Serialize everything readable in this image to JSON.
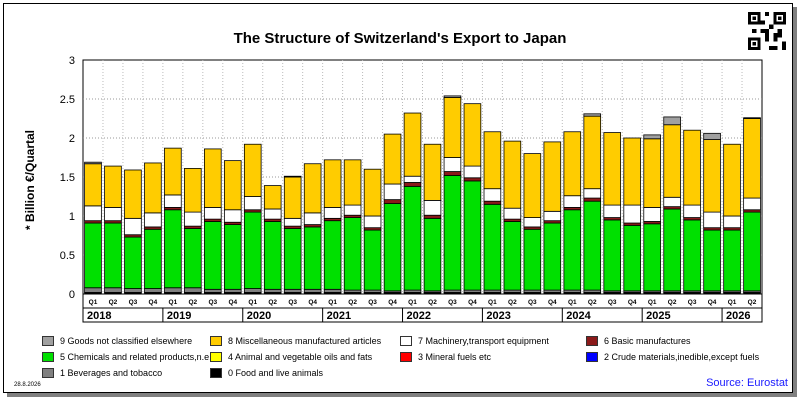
{
  "chart_data": {
    "type": "bar",
    "stacked": true,
    "title": "The Structure of Switzerland's Export to Japan",
    "ylabel": "* Billion €/Quartal",
    "ylim": [
      0,
      3
    ],
    "y_ticks": [
      "0",
      "0.5",
      "1",
      "1.5",
      "2",
      "2.5",
      "3"
    ],
    "grid": true,
    "quarter_labels": [
      "Q1",
      "Q2",
      "Q3",
      "Q4",
      "Q1",
      "Q2",
      "Q3",
      "Q4",
      "Q1",
      "Q2",
      "Q3",
      "Q4",
      "Q1",
      "Q2",
      "Q3",
      "Q4",
      "Q1",
      "Q2",
      "Q3",
      "Q4",
      "Q1",
      "Q2",
      "Q3",
      "Q4",
      "Q1",
      "Q2",
      "Q3",
      "Q4",
      "Q1",
      "Q2",
      "Q3",
      "Q4",
      "Q1",
      "Q2"
    ],
    "years": [
      "2018",
      "2019",
      "2020",
      "2021",
      "2022",
      "2023",
      "2024",
      "2025",
      "2026"
    ],
    "series": [
      {
        "name": "0 Food and live animals",
        "color": "#000000",
        "values": [
          0.02,
          0.02,
          0.02,
          0.02,
          0.02,
          0.02,
          0.02,
          0.02,
          0.02,
          0.02,
          0.02,
          0.02,
          0.02,
          0.02,
          0.02,
          0.02,
          0.02,
          0.02,
          0.02,
          0.02,
          0.02,
          0.02,
          0.02,
          0.02,
          0.02,
          0.02,
          0.02,
          0.02,
          0.02,
          0.02,
          0.02,
          0.02,
          0.02,
          0.02
        ]
      },
      {
        "name": "1 Beverages and tobacco",
        "color": "#808080",
        "values": [
          0.06,
          0.06,
          0.05,
          0.05,
          0.06,
          0.06,
          0.04,
          0.04,
          0.05,
          0.04,
          0.04,
          0.04,
          0.04,
          0.03,
          0.03,
          0.02,
          0.03,
          0.02,
          0.03,
          0.03,
          0.03,
          0.03,
          0.03,
          0.03,
          0.03,
          0.03,
          0.02,
          0.02,
          0.02,
          0.02,
          0.02,
          0.02,
          0.02,
          0.02
        ]
      },
      {
        "name": "5 Chemicals and related products,n.e.s.",
        "color": "#00e000",
        "values": [
          0.83,
          0.83,
          0.66,
          0.76,
          1.0,
          0.76,
          0.87,
          0.83,
          0.98,
          0.87,
          0.78,
          0.8,
          0.88,
          0.93,
          0.77,
          1.12,
          1.33,
          0.93,
          1.47,
          1.4,
          1.1,
          0.88,
          0.78,
          0.86,
          1.03,
          1.14,
          0.91,
          0.84,
          0.86,
          1.05,
          0.91,
          0.78,
          0.78,
          1.01
        ]
      },
      {
        "name": "6 Basic manufactures",
        "color": "#8b1a1a",
        "values": [
          0.03,
          0.03,
          0.03,
          0.03,
          0.03,
          0.03,
          0.03,
          0.03,
          0.03,
          0.03,
          0.03,
          0.03,
          0.03,
          0.03,
          0.03,
          0.05,
          0.05,
          0.04,
          0.05,
          0.04,
          0.04,
          0.03,
          0.03,
          0.03,
          0.03,
          0.04,
          0.03,
          0.03,
          0.03,
          0.03,
          0.03,
          0.03,
          0.03,
          0.03
        ]
      },
      {
        "name": "7 Machinery,transport equipment",
        "color": "#ffffff",
        "values": [
          0.19,
          0.17,
          0.21,
          0.18,
          0.16,
          0.18,
          0.15,
          0.16,
          0.17,
          0.13,
          0.1,
          0.15,
          0.14,
          0.13,
          0.15,
          0.2,
          0.08,
          0.19,
          0.18,
          0.15,
          0.16,
          0.14,
          0.12,
          0.12,
          0.15,
          0.12,
          0.16,
          0.23,
          0.18,
          0.12,
          0.16,
          0.2,
          0.15,
          0.15
        ]
      },
      {
        "name": "8 Miscellaneous manufactured articles",
        "color": "#ffcc00",
        "values": [
          0.54,
          0.53,
          0.62,
          0.64,
          0.6,
          0.56,
          0.75,
          0.63,
          0.67,
          0.3,
          0.53,
          0.63,
          0.61,
          0.58,
          0.6,
          0.64,
          0.81,
          0.72,
          0.77,
          0.8,
          0.73,
          0.86,
          0.82,
          0.89,
          0.82,
          0.93,
          0.93,
          0.86,
          0.88,
          0.93,
          0.96,
          0.93,
          0.92,
          1.02
        ]
      },
      {
        "name": "9 Goods not classified elsewhere",
        "color": "#a0a0a0",
        "values": [
          0.02,
          0.0,
          0.0,
          0.0,
          0.0,
          0.0,
          0.0,
          0.0,
          0.0,
          0.0,
          0.01,
          0.0,
          0.0,
          0.0,
          0.0,
          0.0,
          0.0,
          0.0,
          0.02,
          0.0,
          0.0,
          0.0,
          0.0,
          0.0,
          0.0,
          0.03,
          0.0,
          0.0,
          0.05,
          0.1,
          0.0,
          0.08,
          0.0,
          0.01
        ]
      }
    ]
  },
  "legend": [
    {
      "label": "9 Goods not classified elsewhere",
      "color": "#a0a0a0"
    },
    {
      "label": "8 Miscellaneous manufactured articles",
      "color": "#ffcc00"
    },
    {
      "label": "7 Machinery,transport equipment",
      "color": "#ffffff"
    },
    {
      "label": "6 Basic manufactures",
      "color": "#8b1a1a"
    },
    {
      "label": "5 Chemicals and related products,n.e.s.",
      "color": "#00e000"
    },
    {
      "label": "4 Animal and vegetable oils and fats",
      "color": "#ffff00"
    },
    {
      "label": "3 Mineral fuels etc",
      "color": "#ff0000"
    },
    {
      "label": "2 Crude materials,inedible,except fuels",
      "color": "#0000ff"
    },
    {
      "label": "1 Beverages and tobacco",
      "color": "#808080"
    },
    {
      "label": "0 Food and live animals",
      "color": "#000000"
    }
  ],
  "footer": {
    "date": "28.8.2026",
    "source": "Source: Eurostat"
  },
  "icons": {
    "qr": "qr-code-icon"
  }
}
